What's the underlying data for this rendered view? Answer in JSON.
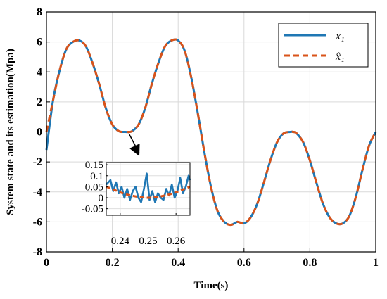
{
  "chart_data": {
    "type": "line",
    "title": "",
    "xlabel": "Time(s)",
    "ylabel": "System state and its estimation(Mpa)",
    "xlim": [
      0,
      1
    ],
    "ylim": [
      -8,
      8
    ],
    "x_ticks": [
      "0",
      "0.2",
      "0.4",
      "0.6",
      "0.8",
      "1"
    ],
    "y_ticks": [
      "-8",
      "-6",
      "-4",
      "-2",
      "0",
      "2",
      "4",
      "6",
      "8"
    ],
    "grid": true,
    "legend_position": "top-right",
    "series": [
      {
        "name": "x₁",
        "legend_label": "x₁",
        "style": "solid",
        "color": "#1f77b4",
        "x": [
          0,
          0.02,
          0.04,
          0.06,
          0.08,
          0.1,
          0.12,
          0.14,
          0.16,
          0.18,
          0.2,
          0.22,
          0.24,
          0.25,
          0.26,
          0.28,
          0.3,
          0.32,
          0.34,
          0.36,
          0.38,
          0.4,
          0.42,
          0.44,
          0.46,
          0.48,
          0.5,
          0.52,
          0.54,
          0.56,
          0.58,
          0.6,
          0.62,
          0.64,
          0.66,
          0.68,
          0.7,
          0.72,
          0.74,
          0.75,
          0.76,
          0.78,
          0.8,
          0.82,
          0.84,
          0.86,
          0.88,
          0.9,
          0.92,
          0.94,
          0.96,
          0.98,
          1.0
        ],
        "y": [
          -1.2,
          2.1,
          4.1,
          5.5,
          6.0,
          6.1,
          5.7,
          4.6,
          3.2,
          1.6,
          0.5,
          0.05,
          0.0,
          0.0,
          0.05,
          0.5,
          1.6,
          3.2,
          4.6,
          5.7,
          6.1,
          6.1,
          5.4,
          3.6,
          1.2,
          -1.4,
          -3.7,
          -5.3,
          -6.0,
          -6.2,
          -6.0,
          -6.1,
          -5.7,
          -4.8,
          -3.4,
          -1.9,
          -0.7,
          -0.1,
          0.0,
          0.0,
          -0.1,
          -0.7,
          -1.9,
          -3.4,
          -4.8,
          -5.7,
          -6.1,
          -6.1,
          -5.6,
          -4.3,
          -2.5,
          -0.9,
          0.0
        ]
      },
      {
        "name": "x̂₁",
        "legend_label": "x̂₁",
        "style": "dashed",
        "color": "#d95319",
        "x": [
          0,
          0.02,
          0.04,
          0.06,
          0.08,
          0.1,
          0.12,
          0.14,
          0.16,
          0.18,
          0.2,
          0.22,
          0.24,
          0.25,
          0.26,
          0.28,
          0.3,
          0.32,
          0.34,
          0.36,
          0.38,
          0.4,
          0.42,
          0.44,
          0.46,
          0.48,
          0.5,
          0.52,
          0.54,
          0.56,
          0.58,
          0.6,
          0.62,
          0.64,
          0.66,
          0.68,
          0.7,
          0.72,
          0.74,
          0.75,
          0.76,
          0.78,
          0.8,
          0.82,
          0.84,
          0.86,
          0.88,
          0.9,
          0.92,
          0.94,
          0.96,
          0.98,
          1.0
        ],
        "y": [
          0.0,
          2.1,
          4.1,
          5.5,
          6.0,
          6.1,
          5.7,
          4.6,
          3.2,
          1.6,
          0.5,
          0.05,
          0.0,
          0.0,
          0.05,
          0.5,
          1.6,
          3.2,
          4.6,
          5.7,
          6.1,
          6.1,
          5.4,
          3.6,
          1.2,
          -1.4,
          -3.7,
          -5.3,
          -6.0,
          -6.2,
          -6.0,
          -6.1,
          -5.7,
          -4.8,
          -3.4,
          -1.9,
          -0.7,
          -0.1,
          0.0,
          0.0,
          -0.1,
          -0.7,
          -1.9,
          -3.4,
          -4.8,
          -5.7,
          -6.1,
          -6.1,
          -5.6,
          -4.3,
          -2.5,
          -0.9,
          0.0
        ]
      }
    ],
    "inset": {
      "xlim": [
        0.235,
        0.265
      ],
      "ylim": [
        -0.08,
        0.16
      ],
      "x_ticks": [
        "0.24",
        "0.25",
        "0.26"
      ],
      "y_ticks": [
        "0.15",
        "0.1",
        "0.05",
        "0",
        "-0.05"
      ],
      "series": [
        {
          "name": "x₁",
          "color": "#1f77b4",
          "style": "solid",
          "x": [
            0.235,
            0.2365,
            0.2375,
            0.2385,
            0.2395,
            0.2405,
            0.2415,
            0.2425,
            0.2435,
            0.2445,
            0.2455,
            0.2465,
            0.2475,
            0.2485,
            0.2495,
            0.2505,
            0.2515,
            0.2525,
            0.2535,
            0.2545,
            0.2555,
            0.2565,
            0.2575,
            0.2585,
            0.2595,
            0.2605,
            0.2615,
            0.2625,
            0.2635,
            0.2645,
            0.265
          ],
          "y": [
            0.06,
            0.08,
            0.03,
            0.07,
            0.02,
            0.05,
            0.0,
            0.04,
            -0.01,
            0.03,
            0.05,
            0.0,
            -0.02,
            0.04,
            0.11,
            -0.01,
            0.03,
            -0.02,
            0.02,
            0.0,
            -0.01,
            0.04,
            0.01,
            0.06,
            0.0,
            0.03,
            0.09,
            0.02,
            0.05,
            0.1,
            0.08
          ]
        },
        {
          "name": "x̂₁",
          "color": "#d95319",
          "style": "dashed",
          "x": [
            0.235,
            0.238,
            0.241,
            0.244,
            0.247,
            0.25,
            0.253,
            0.256,
            0.259,
            0.262,
            0.265
          ],
          "y": [
            0.05,
            0.035,
            0.02,
            0.01,
            0.003,
            0.0,
            0.003,
            0.01,
            0.02,
            0.035,
            0.05
          ]
        }
      ]
    }
  }
}
